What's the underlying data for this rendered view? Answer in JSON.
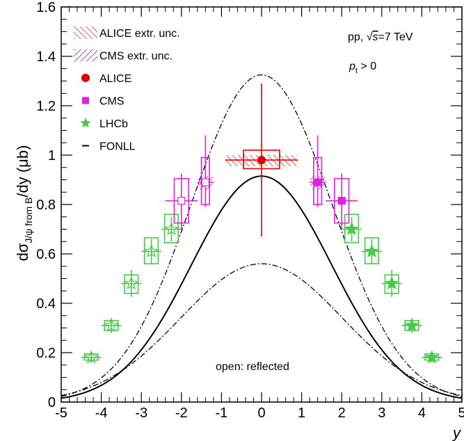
{
  "chart_data": {
    "type": "scatter",
    "xlabel": "y",
    "ylabel_main": "dσ",
    "ylabel_sub": "J/ψ from B",
    "ylabel_tail": "/dy (μb)",
    "xlim": [
      -5,
      5
    ],
    "ylim": [
      0,
      1.6
    ],
    "x_ticks": [
      -5,
      -4,
      -3,
      -2,
      -1,
      0,
      1,
      2,
      3,
      4,
      5
    ],
    "x_tick_labels": [
      "-5",
      "-4",
      "-3",
      "-2",
      "-1",
      "0",
      "1",
      "2",
      "3",
      "4",
      "5"
    ],
    "y_ticks": [
      0,
      0.2,
      0.4,
      0.6,
      0.8,
      1.0,
      1.2,
      1.4,
      1.6
    ],
    "y_tick_labels": [
      "0",
      "0.2",
      "0.4",
      "0.6",
      "0.8",
      "1",
      "1.2",
      "1.4",
      "1.6"
    ],
    "annotations": {
      "system": "pp, ",
      "sqrt_s": "s",
      "energy": "=7 TeV",
      "pt_symbol": "p",
      "pt_sub": "t",
      "pt_cut": " > 0",
      "sqrt_symbol": "√",
      "reflected_note": "open: reflected"
    },
    "legend": {
      "placement": "top-left",
      "entries": [
        {
          "label": "ALICE extr. unc.",
          "kind": "hatch",
          "color": "#dd2222"
        },
        {
          "label": "CMS extr. unc.",
          "kind": "hatch",
          "color": "#8822aa"
        },
        {
          "label": "ALICE",
          "kind": "circle",
          "color": "#e00000"
        },
        {
          "label": "CMS",
          "kind": "square",
          "color": "#e020e0"
        },
        {
          "label": "LHCb",
          "kind": "star",
          "color": "#44cc44"
        },
        {
          "label": "FONLL",
          "kind": "line",
          "color": "#000000"
        }
      ]
    },
    "colors": {
      "alice": "#e00000",
      "cms": "#e020e0",
      "lhcb": "#44cc44",
      "fonll": "#000000",
      "alice_hatch": "#dd2222",
      "cms_hatch": "#8822aa"
    },
    "series": [
      {
        "name": "ALICE",
        "points": [
          {
            "x": 0.0,
            "y": 0.98,
            "xerr": 0.9,
            "yerr": 0.31,
            "sys_w": 0.45,
            "sys_lo": 0.945,
            "sys_hi": 1.02,
            "extr_w": 0.9,
            "extr_lo": 0.955,
            "extr_hi": 1.0
          }
        ]
      },
      {
        "name": "CMS",
        "points": [
          {
            "x": 1.4,
            "y": 0.89,
            "xerr": 0.2,
            "ylo": 0.79,
            "yhi": 1.08,
            "sys_w": 0.1,
            "sys_lo": 0.8,
            "sys_hi": 0.99,
            "open": false,
            "extr": [
              0.86,
              0.915
            ]
          },
          {
            "x": 2.0,
            "y": 0.815,
            "xerr": 0.4,
            "ylo": 0.7,
            "yhi": 0.925,
            "sys_w": 0.18,
            "sys_lo": 0.725,
            "sys_hi": 0.905,
            "open": false
          },
          {
            "x": -1.4,
            "y": 0.89,
            "xerr": 0.2,
            "ylo": 0.79,
            "yhi": 1.08,
            "sys_w": 0.1,
            "sys_lo": 0.8,
            "sys_hi": 0.99,
            "open": true,
            "extr": [
              0.86,
              0.915
            ]
          },
          {
            "x": -2.0,
            "y": 0.815,
            "xerr": 0.4,
            "ylo": 0.7,
            "yhi": 0.925,
            "sys_w": 0.18,
            "sys_lo": 0.725,
            "sys_hi": 0.905,
            "open": true
          }
        ]
      },
      {
        "name": "LHCb",
        "points": [
          {
            "x": 2.25,
            "y": 0.7,
            "xerr": 0.25,
            "yerr": 0.05,
            "sys_lo": 0.645,
            "sys_hi": 0.76,
            "open": false
          },
          {
            "x": 2.75,
            "y": 0.61,
            "xerr": 0.25,
            "yerr": 0.05,
            "sys_lo": 0.56,
            "sys_hi": 0.665,
            "open": false
          },
          {
            "x": 3.25,
            "y": 0.48,
            "xerr": 0.25,
            "yerr": 0.055,
            "sys_lo": 0.44,
            "sys_hi": 0.515,
            "open": false
          },
          {
            "x": 3.75,
            "y": 0.31,
            "xerr": 0.25,
            "yerr": 0.03,
            "sys_lo": 0.29,
            "sys_hi": 0.33,
            "open": false
          },
          {
            "x": 4.25,
            "y": 0.18,
            "xerr": 0.25,
            "yerr": 0.02,
            "sys_lo": 0.17,
            "sys_hi": 0.195,
            "open": false
          },
          {
            "x": -2.25,
            "y": 0.7,
            "xerr": 0.25,
            "yerr": 0.05,
            "sys_lo": 0.645,
            "sys_hi": 0.76,
            "open": true
          },
          {
            "x": -2.75,
            "y": 0.61,
            "xerr": 0.25,
            "yerr": 0.05,
            "sys_lo": 0.56,
            "sys_hi": 0.665,
            "open": true
          },
          {
            "x": -3.25,
            "y": 0.48,
            "xerr": 0.25,
            "yerr": 0.055,
            "sys_lo": 0.44,
            "sys_hi": 0.515,
            "open": true
          },
          {
            "x": -3.75,
            "y": 0.31,
            "xerr": 0.25,
            "yerr": 0.03,
            "sys_lo": 0.29,
            "sys_hi": 0.33,
            "open": true
          },
          {
            "x": -4.25,
            "y": 0.18,
            "xerr": 0.25,
            "yerr": 0.02,
            "sys_lo": 0.17,
            "sys_hi": 0.195,
            "open": true
          }
        ]
      },
      {
        "name": "FONLL",
        "central": {
          "peak": 0.915,
          "width": 2.6
        },
        "upper": {
          "peak": 1.325,
          "width": 2.6
        },
        "lower": {
          "peak": 0.56,
          "width": 3.0
        }
      }
    ]
  }
}
